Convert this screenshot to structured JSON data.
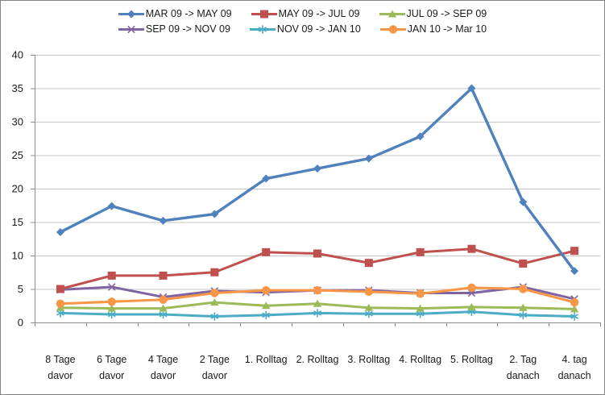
{
  "chart_data": {
    "type": "line",
    "title": "",
    "xlabel": "",
    "ylabel": "",
    "categories": [
      "8 Tage davor",
      "6 Tage davor",
      "4 Tage davor",
      "2 Tage davor",
      "1. Rolltag",
      "2. Rolltag",
      "3. Rolltag",
      "4. Rolltag",
      "5. Rolltag",
      "2. Tag danach",
      "4. tag danach"
    ],
    "category_label_lines": [
      [
        "8 Tage",
        "davor"
      ],
      [
        "6 Tage",
        "davor"
      ],
      [
        "4 Tage",
        "davor"
      ],
      [
        "2 Tage",
        "davor"
      ],
      [
        "1. Rolltag"
      ],
      [
        "2. Rolltag"
      ],
      [
        "3. Rolltag"
      ],
      [
        "4. Rolltag"
      ],
      [
        "5. Rolltag"
      ],
      [
        "2. Tag",
        "danach"
      ],
      [
        "4. tag",
        "danach"
      ]
    ],
    "series": [
      {
        "name": "MAR 09 -> MAY 09",
        "marker": "diamond",
        "color": "#4F81BD",
        "values": [
          13.5,
          17.4,
          15.2,
          16.2,
          21.5,
          23.0,
          24.5,
          27.8,
          35.0,
          18.0,
          7.7
        ]
      },
      {
        "name": "MAY 09 -> JUL 09",
        "marker": "square",
        "color": "#C0504D",
        "values": [
          5.0,
          7.0,
          7.0,
          7.5,
          10.5,
          10.3,
          8.9,
          10.5,
          11.0,
          8.8,
          10.7
        ]
      },
      {
        "name": "JUL 09 -> SEP 09",
        "marker": "triangle",
        "color": "#9BBB59",
        "values": [
          2.2,
          2.1,
          2.1,
          3.0,
          2.5,
          2.8,
          2.2,
          2.1,
          2.3,
          2.2,
          2.0
        ]
      },
      {
        "name": "SEP 09 -> NOV 09",
        "marker": "x",
        "color": "#8064A2",
        "values": [
          4.9,
          5.3,
          3.8,
          4.7,
          4.5,
          4.8,
          4.8,
          4.4,
          4.4,
          5.3,
          3.5
        ]
      },
      {
        "name": "NOV 09 -> JAN 10",
        "marker": "asterisk",
        "color": "#4BACC6",
        "values": [
          1.4,
          1.2,
          1.2,
          0.9,
          1.1,
          1.4,
          1.3,
          1.3,
          1.6,
          1.1,
          0.9
        ]
      },
      {
        "name": "JAN 10 -> Mar 10",
        "marker": "circle",
        "color": "#F79646",
        "values": [
          2.8,
          3.1,
          3.4,
          4.4,
          4.8,
          4.8,
          4.6,
          4.3,
          5.2,
          5.0,
          3.0
        ]
      }
    ],
    "ylim": [
      0,
      40
    ],
    "yticks": [
      0,
      5,
      10,
      15,
      20,
      25,
      30,
      35,
      40
    ],
    "grid": true,
    "legend_position": "top",
    "legend_rows": [
      [
        0,
        1,
        2
      ],
      [
        3,
        4,
        5
      ]
    ]
  },
  "colors": {
    "background": "#FFFFFF",
    "frame_border": "#848484",
    "gridline": "#C6C6C6",
    "axis": "#8C8C8C",
    "tick_text": "#1A1A1A"
  }
}
